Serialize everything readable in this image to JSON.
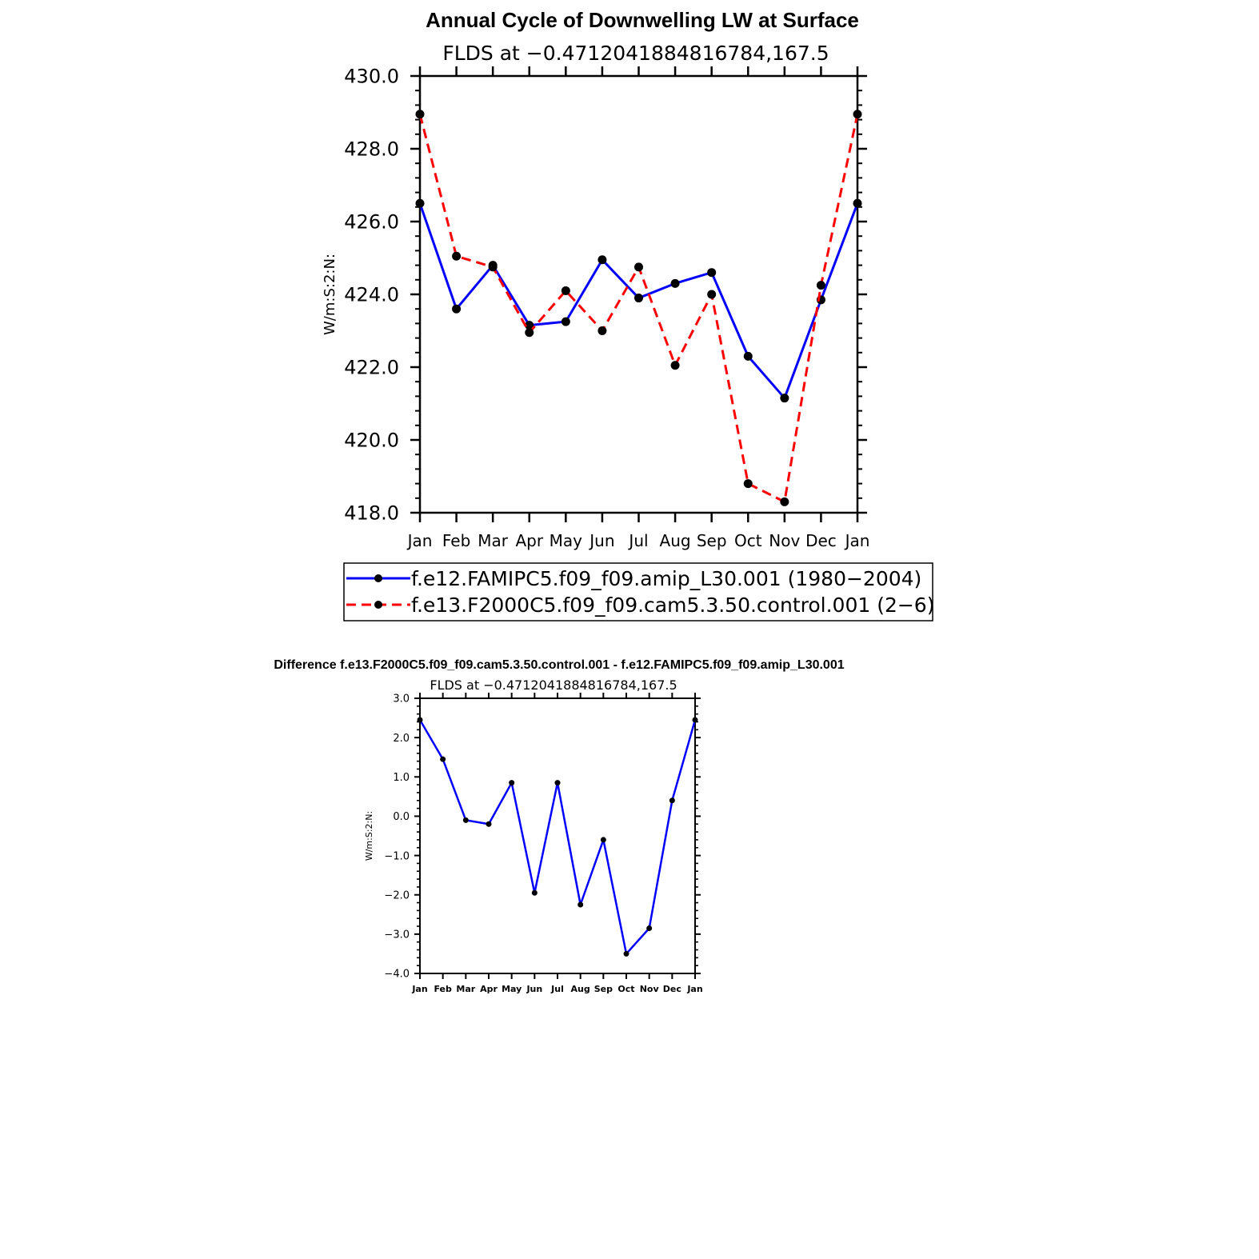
{
  "chart_data": [
    {
      "type": "line",
      "title": "Annual Cycle of Downwelling LW at Surface",
      "subtitle": "FLDS at −0.4712041884816784,167.5",
      "ylabel": "W/m:S:2:N:",
      "xlabel": "",
      "categories": [
        "Jan",
        "Feb",
        "Mar",
        "Apr",
        "May",
        "Jun",
        "Jul",
        "Aug",
        "Sep",
        "Oct",
        "Nov",
        "Dec",
        "Jan"
      ],
      "ylim": [
        418.0,
        430.0
      ],
      "yticks": [
        "418.0",
        "420.0",
        "422.0",
        "424.0",
        "426.0",
        "428.0",
        "430.0"
      ],
      "grid": false,
      "legend_position": "bottom",
      "series": [
        {
          "name": "f.e12.FAMIPC5.f09_f09.amip_L30.001 (1980−2004)",
          "color": "#0000ff",
          "dash": "solid",
          "values": [
            426.5,
            423.6,
            424.8,
            423.15,
            423.25,
            424.95,
            423.9,
            424.3,
            424.6,
            422.3,
            421.15,
            423.85,
            426.5
          ]
        },
        {
          "name": "f.e13.F2000C5.f09_f09.cam5.3.50.control.001 (2−6)",
          "color": "#ff0000",
          "dash": "dashed",
          "values": [
            428.95,
            425.05,
            424.75,
            422.95,
            424.1,
            423.0,
            424.75,
            422.05,
            424.0,
            418.8,
            418.3,
            424.25,
            428.95
          ]
        }
      ]
    },
    {
      "type": "line",
      "title": "Difference f.e13.F2000C5.f09_f09.cam5.3.50.control.001 - f.e12.FAMIPC5.f09_f09.amip_L30.001",
      "subtitle": "FLDS at −0.4712041884816784,167.5",
      "ylabel": "W/m:S:2:N:",
      "xlabel": "",
      "categories": [
        "Jan",
        "Feb",
        "Mar",
        "Apr",
        "May",
        "Jun",
        "Jul",
        "Aug",
        "Sep",
        "Oct",
        "Nov",
        "Dec",
        "Jan"
      ],
      "ylim": [
        -4.0,
        3.0
      ],
      "yticks": [
        "−4.0",
        "−3.0",
        "−2.0",
        "−1.0",
        "0.0",
        "1.0",
        "2.0",
        "3.0"
      ],
      "grid": false,
      "series": [
        {
          "color": "#0000ff",
          "dash": "solid",
          "values": [
            2.45,
            1.45,
            -0.1,
            -0.2,
            0.85,
            -1.95,
            0.85,
            -2.25,
            -0.6,
            -3.5,
            -2.85,
            0.4,
            2.45
          ]
        }
      ]
    }
  ]
}
